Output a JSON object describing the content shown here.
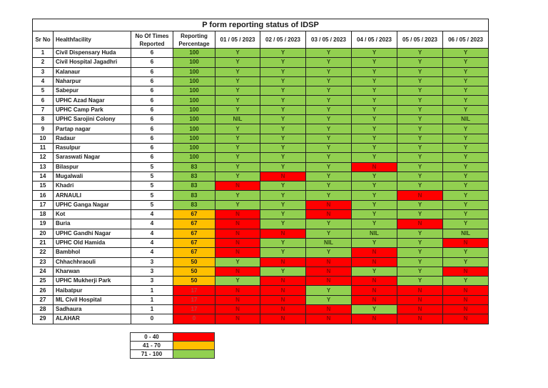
{
  "title": "P form reporting status of IDSP",
  "headers": {
    "sr_no": "Sr No",
    "facility": "Healthfacility",
    "times": "No Of Times Reported",
    "pct": "Reporting Percentage",
    "dates": [
      "01 / 05 / 2023",
      "02 / 05 / 2023",
      "03 / 05 / 2023",
      "04 / 05 / 2023",
      "05 / 05 / 2023",
      "06 / 05 / 2023"
    ]
  },
  "colors": {
    "green": "#92d050",
    "amber": "#ffc000",
    "red": "#ff0000"
  },
  "rows": [
    {
      "sr": "1",
      "name": "Civil Dispensary Huda",
      "times": "6",
      "pct": "100",
      "band": "g",
      "days": [
        "Y",
        "Y",
        "Y",
        "Y",
        "Y",
        "Y"
      ]
    },
    {
      "sr": "2",
      "name": "Civil Hospital Jagadhri",
      "times": "6",
      "pct": "100",
      "band": "g",
      "days": [
        "Y",
        "Y",
        "Y",
        "Y",
        "Y",
        "Y"
      ]
    },
    {
      "sr": "3",
      "name": "Kalanaur",
      "times": "6",
      "pct": "100",
      "band": "g",
      "days": [
        "Y",
        "Y",
        "Y",
        "Y",
        "Y",
        "Y"
      ]
    },
    {
      "sr": "4",
      "name": "Naharpur",
      "times": "6",
      "pct": "100",
      "band": "g",
      "days": [
        "Y",
        "Y",
        "Y",
        "Y",
        "Y",
        "Y"
      ]
    },
    {
      "sr": "5",
      "name": "Sabepur",
      "times": "6",
      "pct": "100",
      "band": "g",
      "days": [
        "Y",
        "Y",
        "Y",
        "Y",
        "Y",
        "Y"
      ]
    },
    {
      "sr": "6",
      "name": "UPHC Azad Nagar",
      "times": "6",
      "pct": "100",
      "band": "g",
      "days": [
        "Y",
        "Y",
        "Y",
        "Y",
        "Y",
        "Y"
      ]
    },
    {
      "sr": "7",
      "name": "UPHC Camp Park",
      "times": "6",
      "pct": "100",
      "band": "g",
      "days": [
        "Y",
        "Y",
        "Y",
        "Y",
        "Y",
        "Y"
      ]
    },
    {
      "sr": "8",
      "name": "UPHC  Sarojini Colony",
      "times": "6",
      "pct": "100",
      "band": "g",
      "days": [
        "NIL",
        "Y",
        "Y",
        "Y",
        "Y",
        "NIL"
      ]
    },
    {
      "sr": "9",
      "name": "Partap nagar",
      "times": "6",
      "pct": "100",
      "band": "g",
      "days": [
        "Y",
        "Y",
        "Y",
        "Y",
        "Y",
        "Y"
      ]
    },
    {
      "sr": "10",
      "name": "Radaur",
      "times": "6",
      "pct": "100",
      "band": "g",
      "days": [
        "Y",
        "Y",
        "Y",
        "Y",
        "Y",
        "Y"
      ]
    },
    {
      "sr": "11",
      "name": "Rasulpur",
      "times": "6",
      "pct": "100",
      "band": "g",
      "days": [
        "Y",
        "Y",
        "Y",
        "Y",
        "Y",
        "Y"
      ]
    },
    {
      "sr": "12",
      "name": "Saraswati Nagar",
      "times": "6",
      "pct": "100",
      "band": "g",
      "days": [
        "Y",
        "Y",
        "Y",
        "Y",
        "Y",
        "Y"
      ]
    },
    {
      "sr": "13",
      "name": "Bilaspur",
      "times": "5",
      "pct": "83",
      "band": "g",
      "days": [
        "Y",
        "Y",
        "Y",
        "N",
        "Y",
        "Y"
      ]
    },
    {
      "sr": "14",
      "name": "Mugalwali",
      "times": "5",
      "pct": "83",
      "band": "g",
      "days": [
        "Y",
        "N",
        "Y",
        "Y",
        "Y",
        "Y"
      ]
    },
    {
      "sr": "15",
      "name": "Khadri",
      "times": "5",
      "pct": "83",
      "band": "g",
      "days": [
        "N",
        "Y",
        "Y",
        "Y",
        "Y",
        "Y"
      ]
    },
    {
      "sr": "16",
      "name": "ARNAULI",
      "times": "5",
      "pct": "83",
      "band": "g",
      "days": [
        "Y",
        "Y",
        "Y",
        "Y",
        "N",
        "Y"
      ]
    },
    {
      "sr": "17",
      "name": "UPHC Ganga Nagar",
      "times": "5",
      "pct": "83",
      "band": "g",
      "days": [
        "Y",
        "Y",
        "N",
        "Y",
        "Y",
        "Y"
      ]
    },
    {
      "sr": "18",
      "name": "Kot",
      "times": "4",
      "pct": "67",
      "band": "y",
      "days": [
        "N",
        "Y",
        "N",
        "Y",
        "Y",
        "Y"
      ]
    },
    {
      "sr": "19",
      "name": "Buria",
      "times": "4",
      "pct": "67",
      "band": "y",
      "days": [
        "N",
        "Y",
        "Y",
        "Y",
        "N",
        "Y"
      ]
    },
    {
      "sr": "20",
      "name": "UPHC Gandhi Nagar",
      "times": "4",
      "pct": "67",
      "band": "y",
      "days": [
        "N",
        "N",
        "Y",
        "NIL",
        "Y",
        "NIL"
      ]
    },
    {
      "sr": "21",
      "name": "UPHC Old Hamida",
      "times": "4",
      "pct": "67",
      "band": "y",
      "days": [
        "N",
        "Y",
        "NIL",
        "Y",
        "Y",
        "N"
      ]
    },
    {
      "sr": "22",
      "name": "Bambhol",
      "times": "4",
      "pct": "67",
      "band": "y",
      "days": [
        "N",
        "Y",
        "Y",
        "N",
        "Y",
        "Y"
      ]
    },
    {
      "sr": "23",
      "name": "Chhachhraouli",
      "times": "3",
      "pct": "50",
      "band": "y",
      "days": [
        "Y",
        "N",
        "N",
        "N",
        "Y",
        "Y"
      ]
    },
    {
      "sr": "24",
      "name": "Kharwan",
      "times": "3",
      "pct": "50",
      "band": "y",
      "days": [
        "N",
        "Y",
        "N",
        "Y",
        "Y",
        "N"
      ]
    },
    {
      "sr": "25",
      "name": "UPHC Mukherji Park",
      "times": "3",
      "pct": "50",
      "band": "y",
      "days": [
        "Y",
        "N",
        "N",
        "N",
        "Y",
        "Y"
      ]
    },
    {
      "sr": "26",
      "name": "Haibatpur",
      "times": "1",
      "pct": "17",
      "band": "r",
      "days": [
        "N",
        "N",
        "Y",
        "N",
        "N",
        "N"
      ]
    },
    {
      "sr": "27",
      "name": "ML Civil Hospital",
      "times": "1",
      "pct": "17",
      "band": "r",
      "days": [
        "N",
        "N",
        "Y",
        "N",
        "N",
        "N"
      ]
    },
    {
      "sr": "28",
      "name": "Sadhaura",
      "times": "1",
      "pct": "17",
      "band": "r",
      "days": [
        "N",
        "N",
        "N",
        "Y",
        "N",
        "N"
      ]
    },
    {
      "sr": "29",
      "name": "ALAHAR",
      "times": "0",
      "pct": "0",
      "band": "r",
      "days": [
        "N",
        "N",
        "N",
        "N",
        "N",
        "N"
      ]
    }
  ],
  "legend": [
    {
      "range": "0 - 40",
      "band": "r"
    },
    {
      "range": "41 - 70",
      "band": "y"
    },
    {
      "range": "71 - 100",
      "band": "g"
    }
  ]
}
